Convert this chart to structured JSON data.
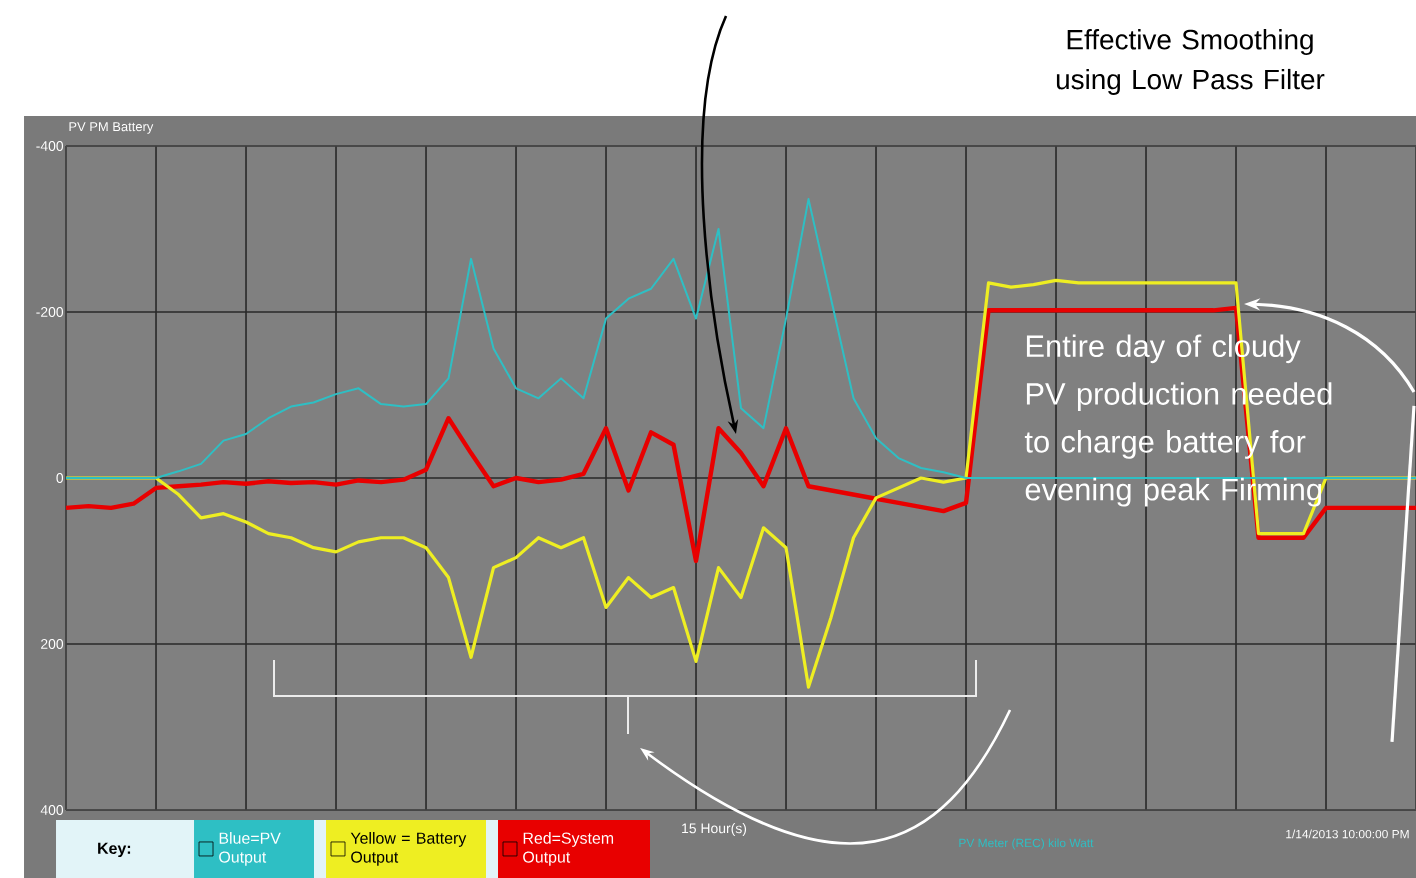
{
  "chart_data": {
    "type": "line",
    "title": "PV PM Battery",
    "xlabel": "15 Hour(s)",
    "annotations": [
      "Effective Smoothing using Low Pass Filter",
      "Entire day of cloudy PV production needed to charge battery for evening peak Firming",
      "1/14/2013 10:00:00 PM",
      "PV Meter (REC) kilo Watt"
    ],
    "legend_title": "Key:",
    "categories": [
      null,
      null,
      null,
      null,
      null,
      null,
      null,
      null,
      null,
      null,
      null,
      null,
      null,
      null,
      null,
      null,
      null,
      null,
      null,
      null,
      null,
      null,
      null,
      null,
      null,
      null,
      null,
      null,
      null,
      null,
      null,
      null,
      null,
      null,
      null,
      null,
      null,
      null,
      null,
      null,
      null,
      null,
      null,
      null,
      null,
      null,
      null,
      null,
      null,
      null,
      null,
      null,
      null,
      null,
      null,
      null,
      null,
      null,
      null,
      null,
      null
    ],
    "series": [
      {
        "name": "Blue=PV Output",
        "color": "#2ebfc4",
        "values": [
          0,
          0,
          0,
          0,
          0,
          -8,
          -17,
          -45,
          -53,
          -72,
          -86,
          -91,
          -101,
          -108,
          -89,
          -86,
          -89,
          -120,
          -264,
          -156,
          -108,
          -96,
          -120,
          -96,
          -192,
          -216,
          -228,
          -264,
          -192,
          -300,
          -84,
          -60,
          -192,
          -336,
          -216,
          -96,
          -48,
          -24,
          -12,
          -7,
          0,
          0,
          0,
          0,
          0,
          0,
          0,
          0,
          0,
          0,
          0,
          0,
          0,
          0,
          0,
          0,
          0,
          0,
          0,
          0,
          0
        ]
      },
      {
        "name": "Yellow = Battery Output",
        "color": "#eeee22",
        "values": [
          0,
          0,
          0,
          0,
          0,
          20,
          48,
          43,
          53,
          67,
          72,
          84,
          89,
          77,
          72,
          72,
          84,
          120,
          216,
          108,
          96,
          72,
          84,
          72,
          156,
          120,
          144,
          132,
          221,
          108,
          144,
          60,
          84,
          252,
          168,
          72,
          24,
          12,
          0,
          5,
          0,
          -235,
          -230,
          -233,
          -238,
          -235,
          -235,
          -235,
          -235,
          -235,
          -235,
          -235,
          -235,
          67,
          67,
          67,
          0,
          0,
          0,
          0,
          0
        ]
      },
      {
        "name": "Red=System Output",
        "color": "#e80000",
        "values": [
          36,
          34,
          36,
          31,
          12,
          10,
          8,
          5,
          7,
          4,
          6,
          5,
          8,
          3,
          5,
          2,
          -10,
          -72,
          -30,
          10,
          0,
          5,
          2,
          -5,
          -60,
          15,
          -55,
          -40,
          100,
          -60,
          -30,
          10,
          -60,
          10,
          15,
          20,
          25,
          30,
          35,
          40,
          30,
          -202,
          -202,
          -202,
          -202,
          -202,
          -202,
          -202,
          -202,
          -202,
          -202,
          -202,
          -205,
          72,
          72,
          72,
          36,
          36,
          36,
          36,
          36
        ]
      }
    ],
    "ylim": [
      400,
      -400
    ],
    "yticks": [
      -400,
      -200,
      0,
      200,
      400
    ],
    "grid": true,
    "legend": "bottom left"
  }
}
